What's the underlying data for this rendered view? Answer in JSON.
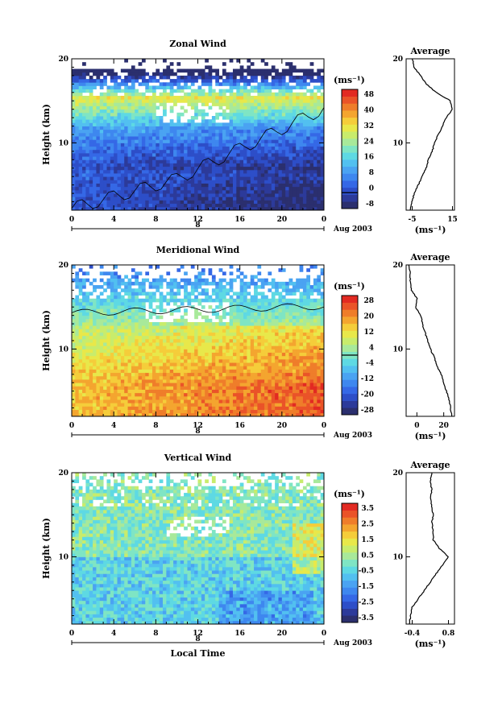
{
  "chart_data": [
    {
      "type": "heatmap",
      "title": "Zonal Wind",
      "ylabel": "Height (km)",
      "xlabel": "",
      "unit_label": "(ms⁻¹)",
      "x_ticks": [
        "0",
        "4",
        "8",
        "12",
        "16",
        "20",
        "0"
      ],
      "y_ticks": [
        "10",
        "20"
      ],
      "ylim": [
        2,
        20
      ],
      "xlim": [
        0,
        24
      ],
      "date_day": "8",
      "date_label": "Aug 2003",
      "colorbar": {
        "ticks": [
          "48",
          "40",
          "32",
          "24",
          "16",
          "8",
          "0",
          "-8"
        ],
        "range": [
          -8,
          52
        ],
        "colors": [
          "#2b2f6e",
          "#2c3a9a",
          "#2d4ec8",
          "#3568e6",
          "#3e87ef",
          "#4aa3f2",
          "#52c0f0",
          "#5ed9e3",
          "#7fe5c4",
          "#a8e99a",
          "#c8ec6c",
          "#e8e84a",
          "#f5cd3a",
          "#f4a52f",
          "#ef7d2a",
          "#ea5328",
          "#e22a22"
        ],
        "contour_at": 0
      },
      "profile": {
        "title": "Average",
        "xlabel": "(ms⁻¹)",
        "x_ticks": [
          "-5",
          "15"
        ],
        "xlim": [
          -8,
          16
        ],
        "y_ticks": [
          "10",
          "20"
        ],
        "heights": [
          2,
          3,
          4,
          5,
          6,
          7,
          8,
          9,
          10,
          11,
          12,
          13,
          14,
          15,
          16,
          17,
          18,
          19,
          20
        ],
        "values": [
          -6,
          -5,
          -4,
          -2,
          0,
          2,
          3,
          5,
          6,
          8,
          10,
          12,
          15,
          14,
          7,
          2,
          -1,
          -4,
          -5
        ]
      }
    },
    {
      "type": "heatmap",
      "title": "Meridional Wind",
      "ylabel": "Height (km)",
      "xlabel": "",
      "unit_label": "(ms⁻¹)",
      "x_ticks": [
        "0",
        "4",
        "8",
        "12",
        "16",
        "20",
        "0"
      ],
      "y_ticks": [
        "10",
        "20"
      ],
      "ylim": [
        2,
        20
      ],
      "xlim": [
        0,
        24
      ],
      "date_day": "8",
      "date_label": "Aug 2003",
      "colorbar": {
        "ticks": [
          "28",
          "20",
          "12",
          "4",
          "-4",
          "-12",
          "-20",
          "-28"
        ],
        "range": [
          -32,
          32
        ],
        "colors": [
          "#2b2f6e",
          "#2c3a9a",
          "#2d4ec8",
          "#3568e6",
          "#3e87ef",
          "#4aa3f2",
          "#52c0f0",
          "#5ed9e3",
          "#7fe5c4",
          "#a8e99a",
          "#c8ec6c",
          "#e8e84a",
          "#f5cd3a",
          "#f4a52f",
          "#ef7d2a",
          "#ea5328",
          "#e22a22"
        ],
        "contour_at": 0
      },
      "profile": {
        "title": "Average",
        "xlabel": "(ms⁻¹)",
        "x_ticks": [
          "0",
          "20"
        ],
        "xlim": [
          -8,
          28
        ],
        "y_ticks": [
          "10",
          "20"
        ],
        "heights": [
          2,
          3,
          4,
          5,
          6,
          7,
          8,
          9,
          10,
          11,
          12,
          13,
          14,
          15,
          16,
          17,
          18,
          19,
          20
        ],
        "values": [
          26,
          25,
          24,
          22,
          20,
          18,
          15,
          13,
          10,
          8,
          6,
          4,
          3,
          -1,
          0,
          -4,
          -5,
          -5,
          -6
        ]
      }
    },
    {
      "type": "heatmap",
      "title": "Vertical Wind",
      "ylabel": "Height (km)",
      "xlabel": "Local Time",
      "unit_label": "(ms⁻¹)",
      "x_ticks": [
        "0",
        "4",
        "8",
        "12",
        "16",
        "20",
        "0"
      ],
      "y_ticks": [
        "10",
        "20"
      ],
      "ylim": [
        2,
        20
      ],
      "xlim": [
        0,
        24
      ],
      "date_day": "8",
      "date_label": "Aug 2003",
      "colorbar": {
        "ticks": [
          "3.5",
          "2.5",
          "1.5",
          "0.5",
          "-0.5",
          "-1.5",
          "-2.5",
          "-3.5"
        ],
        "range": [
          -4,
          4
        ],
        "colors": [
          "#2b2f6e",
          "#2c3a9a",
          "#2d4ec8",
          "#3568e6",
          "#3e87ef",
          "#4aa3f2",
          "#52c0f0",
          "#5ed9e3",
          "#7fe5c4",
          "#a8e99a",
          "#c8ec6c",
          "#e8e84a",
          "#f5cd3a",
          "#f4a52f",
          "#ef7d2a",
          "#ea5328",
          "#e22a22"
        ],
        "contour_at": null
      },
      "profile": {
        "title": "Average",
        "xlabel": "(ms⁻¹)",
        "x_ticks": [
          "-0.4",
          "0.8"
        ],
        "xlim": [
          -0.6,
          1.0
        ],
        "y_ticks": [
          "10",
          "20"
        ],
        "heights": [
          2,
          3,
          4,
          5,
          6,
          7,
          8,
          9,
          10,
          11,
          12,
          13,
          14,
          15,
          16,
          17,
          18,
          19,
          20
        ],
        "values": [
          -0.5,
          -0.45,
          -0.4,
          -0.2,
          0.0,
          0.2,
          0.4,
          0.6,
          0.8,
          0.5,
          0.3,
          0.3,
          0.25,
          0.3,
          0.25,
          0.2,
          0.25,
          0.2,
          0.25
        ]
      }
    }
  ]
}
